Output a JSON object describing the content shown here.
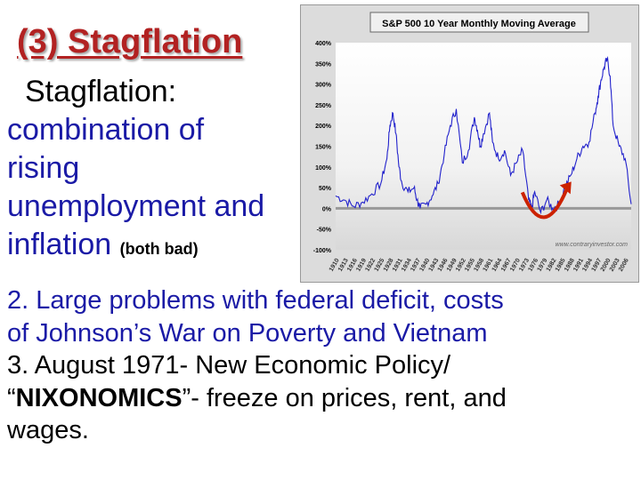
{
  "slide": {
    "title": "(3) Stagflation",
    "definition": {
      "lead": "Stagflation:",
      "lines": [
        "combination of",
        "rising",
        "unemployment and",
        "inflation"
      ],
      "note": "(both bad)"
    },
    "points": {
      "p2_line1": "2. Large problems with federal deficit, costs",
      "p2_line2": "of Johnson’s War on Poverty and Vietnam",
      "p3_line1": "3. August 1971- New Economic Policy/",
      "p3_open_quote": "“",
      "p3_bold": "NIXONOMICS",
      "p3_rest": "”- freeze on prices, rent, and",
      "p3_line3": "wages."
    }
  },
  "chart_data": {
    "type": "line",
    "title": "S&P 500 10 Year Monthly Moving Average",
    "watermark": "www.contraryinvestor.com",
    "ylim": [
      -100,
      400
    ],
    "yticks": [
      "400%",
      "350%",
      "300%",
      "250%",
      "200%",
      "150%",
      "100%",
      "50%",
      "0%",
      "-50%",
      "-100%"
    ],
    "xticks": [
      "1910",
      "1913",
      "1916",
      "1919",
      "1922",
      "1925",
      "1928",
      "1931",
      "1934",
      "1937",
      "1940",
      "1943",
      "1946",
      "1949",
      "1952",
      "1955",
      "1958",
      "1961",
      "1964",
      "1967",
      "1970",
      "1973",
      "1976",
      "1979",
      "1982",
      "1985",
      "1988",
      "1991",
      "1994",
      "1997",
      "2000",
      "2003",
      "2006"
    ],
    "series": [
      {
        "color": "#2222cc",
        "x": [
          1910,
          1913,
          1916,
          1919,
          1922,
          1925,
          1927,
          1928,
          1929,
          1930,
          1931,
          1932,
          1934,
          1936,
          1937,
          1938,
          1940,
          1942,
          1944,
          1946,
          1948,
          1950,
          1952,
          1954,
          1956,
          1957,
          1958,
          1959,
          1961,
          1962,
          1964,
          1966,
          1968,
          1970,
          1972,
          1974,
          1975,
          1976,
          1978,
          1980,
          1982,
          1984,
          1986,
          1988,
          1990,
          1992,
          1994,
          1996,
          1997,
          1998,
          1999,
          2000,
          2001,
          2002,
          2004,
          2006,
          2008
        ],
        "values": [
          30,
          20,
          5,
          15,
          35,
          60,
          120,
          200,
          230,
          180,
          100,
          60,
          40,
          50,
          20,
          0,
          10,
          30,
          60,
          130,
          200,
          240,
          110,
          140,
          220,
          190,
          150,
          180,
          230,
          160,
          120,
          140,
          80,
          110,
          140,
          20,
          0,
          40,
          -10,
          20,
          0,
          10,
          50,
          80,
          120,
          150,
          160,
          230,
          270,
          310,
          340,
          360,
          320,
          200,
          150,
          120,
          10
        ]
      }
    ],
    "arrow_color": "#cc2200"
  }
}
